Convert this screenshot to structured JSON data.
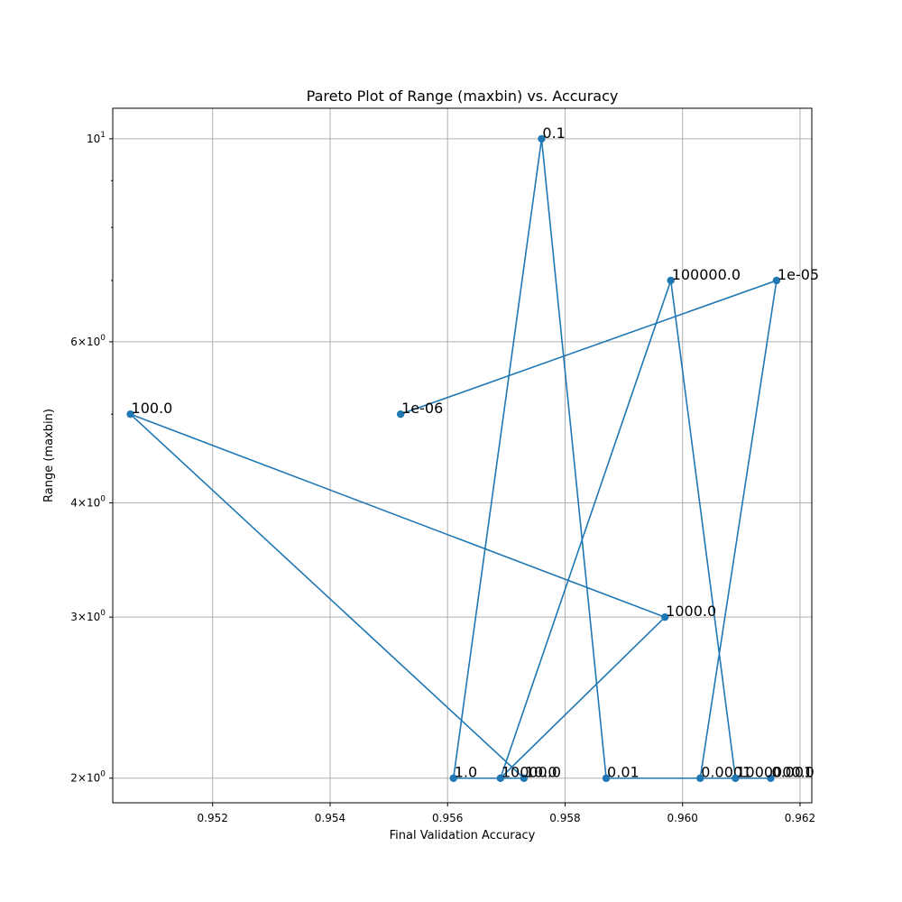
{
  "chart_data": {
    "type": "line",
    "title": "Pareto Plot of Range (maxbin) vs. Accuracy",
    "xlabel": "Final Validation Accuracy",
    "ylabel": "Range (maxbin)",
    "yscale": "log",
    "grid": true,
    "xlim": [
      0.9503,
      0.9622
    ],
    "ylim": [
      1.88,
      10.8
    ],
    "x_ticks": [
      {
        "value": 0.952,
        "label": "0.952"
      },
      {
        "value": 0.954,
        "label": "0.954"
      },
      {
        "value": 0.956,
        "label": "0.956"
      },
      {
        "value": 0.958,
        "label": "0.958"
      },
      {
        "value": 0.96,
        "label": "0.960"
      },
      {
        "value": 0.962,
        "label": "0.962"
      }
    ],
    "y_ticks_major": [
      {
        "value": 2,
        "base": "2",
        "sup": "0"
      },
      {
        "value": 3,
        "base": "3",
        "sup": "0"
      },
      {
        "value": 4,
        "base": "4",
        "sup": "0"
      },
      {
        "value": 6,
        "base": "6",
        "sup": "0"
      },
      {
        "value": 10,
        "base": "10",
        "sup": "1"
      }
    ],
    "y_ticks_minor": [
      5,
      7,
      8,
      9
    ],
    "series": [
      {
        "color": "#1f77b4",
        "points": [
          {
            "label": "1e-06",
            "x": 0.9552,
            "y": 5
          },
          {
            "label": "1e-05",
            "x": 0.9616,
            "y": 7
          },
          {
            "label": "0.0001",
            "x": 0.9603,
            "y": 2
          },
          {
            "label": "0.001",
            "x": 0.9615,
            "y": 2
          },
          {
            "label": "0.01",
            "x": 0.9587,
            "y": 2
          },
          {
            "label": "0.1",
            "x": 0.9576,
            "y": 10
          },
          {
            "label": "1.0",
            "x": 0.9561,
            "y": 2
          },
          {
            "label": "10.0",
            "x": 0.9573,
            "y": 2
          },
          {
            "label": "100.0",
            "x": 0.9506,
            "y": 5
          },
          {
            "label": "1000.0",
            "x": 0.9597,
            "y": 3
          },
          {
            "label": "10000.0",
            "x": 0.9569,
            "y": 2
          },
          {
            "label": "100000.0",
            "x": 0.9598,
            "y": 7
          },
          {
            "label": "1000000.0",
            "x": 0.9609,
            "y": 2
          }
        ]
      }
    ]
  }
}
